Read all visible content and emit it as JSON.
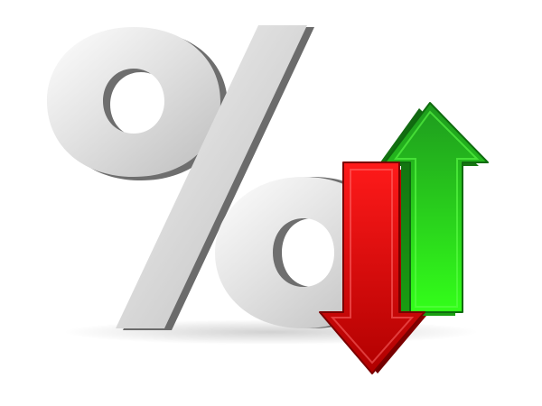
{
  "illustration": {
    "symbol": "percent-sign",
    "arrows": [
      {
        "direction": "down",
        "icon": "arrow-down-icon",
        "color": "#d50000"
      },
      {
        "direction": "up",
        "icon": "arrow-up-icon",
        "color": "#1fbf1f"
      }
    ],
    "colors": {
      "percent_face": "#d9d9d9",
      "percent_side": "#6e6e6e",
      "background": "#ffffff"
    }
  }
}
